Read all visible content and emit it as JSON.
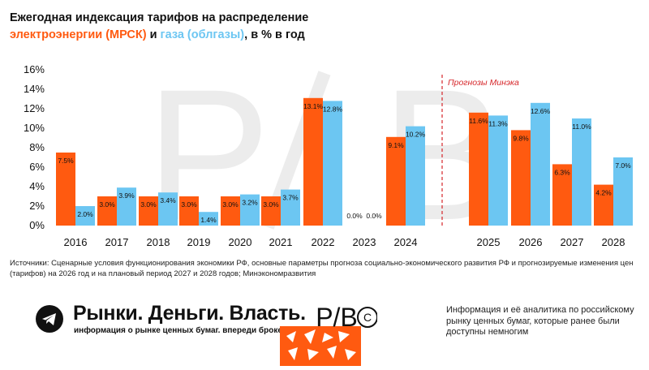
{
  "title": {
    "line1": "Ежегодная индексация тарифов на распределение",
    "line2_orange": "электроэнергии (МРСК)",
    "line2_and": " и ",
    "line2_blue": "газа (облгазы)",
    "line2_rest": ", в % в год"
  },
  "chart_data": {
    "type": "bar",
    "categories": [
      "2016",
      "2017",
      "2018",
      "2019",
      "2020",
      "2021",
      "2022",
      "2023",
      "2024",
      "2025",
      "2026",
      "2027",
      "2028"
    ],
    "series": [
      {
        "name": "электроэнергии (МРСК)",
        "color": "#ff5a10",
        "values": [
          7.5,
          3.0,
          3.0,
          3.0,
          3.0,
          3.0,
          13.1,
          0.0,
          9.1,
          11.6,
          9.8,
          6.3,
          4.2
        ],
        "labels": [
          "7.5%",
          "3.0%",
          "3.0%",
          "3.0%",
          "3.0%",
          "3.0%",
          "13.1%",
          "0.0%",
          "9.1%",
          "11.6%",
          "9.8%",
          "6.3%",
          "4.2%"
        ]
      },
      {
        "name": "газа (облгазы)",
        "color": "#6cc6f2",
        "values": [
          2.0,
          3.9,
          3.4,
          1.4,
          3.2,
          3.7,
          12.8,
          0.0,
          10.2,
          11.3,
          12.6,
          11.0,
          7.0
        ],
        "labels": [
          "2.0%",
          "3.9%",
          "3.4%",
          "1.4%",
          "3.2%",
          "3.7%",
          "12.8%",
          "0.0%",
          "10.2%",
          "11.3%",
          "12.6%",
          "11.0%",
          "7.0%"
        ]
      }
    ],
    "ylim": [
      0,
      16
    ],
    "yticks": [
      "0%",
      "2%",
      "4%",
      "6%",
      "8%",
      "10%",
      "12%",
      "14%",
      "16%"
    ],
    "grid": false,
    "forecast_label": "Прогнозы Минэка",
    "forecast_starts_at": "2025"
  },
  "sources": "Источники: Сценарные условия функционирования экономики РФ, основные параметры прогноза социально-экономического развития РФ и прогнозируемые изменения цен (тарифов) на 2026 год и на плановый период 2027 и 2028 годов; Минэкономразвития",
  "footer": {
    "brand": "Рынки. Деньги. Власть.",
    "brand_sub": "информация о рынке ценных бумаг. впереди брокеров и банков.",
    "logo_text": "Р/В",
    "tagline": "Информация и её аналитика по российскому рынку ценных бумаг, которые ранее были доступны немногим"
  },
  "colors": {
    "orange": "#ff5a10",
    "blue": "#6cc6f2",
    "forecast_line": "#d6262a"
  }
}
